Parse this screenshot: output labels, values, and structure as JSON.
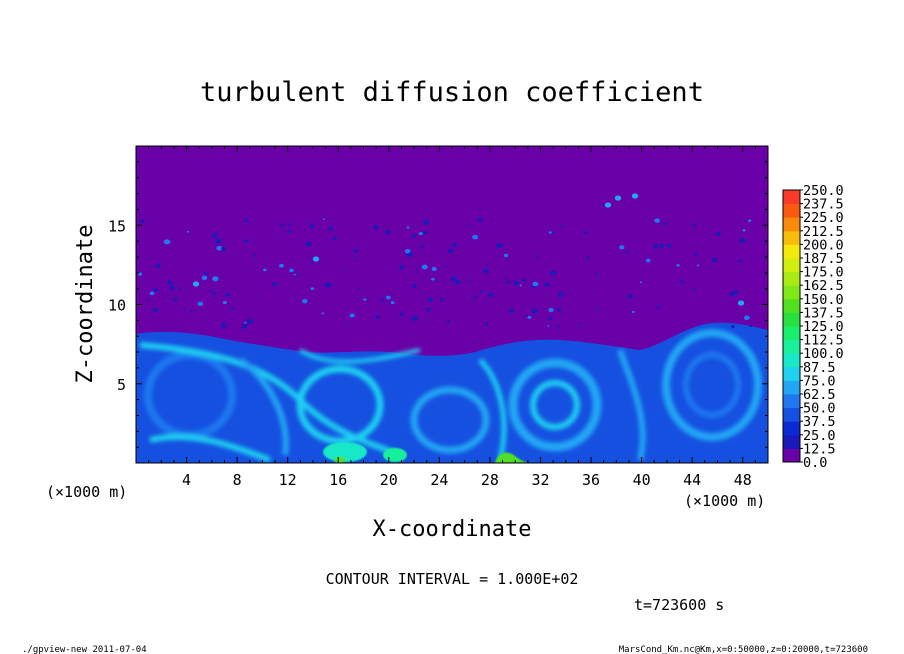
{
  "chart_data": {
    "type": "heatmap",
    "title": "turbulent diffusion coefficient",
    "xlabel": "X-coordinate",
    "ylabel": "Z-coordinate",
    "x_unit_left": "(×1000 m)",
    "x_unit_right": "(×1000 m)",
    "xlim": [
      0,
      50
    ],
    "ylim": [
      0,
      20
    ],
    "x_ticks": [
      4,
      8,
      12,
      16,
      20,
      24,
      28,
      32,
      36,
      40,
      44,
      48
    ],
    "y_ticks": [
      5,
      10,
      15
    ],
    "x_tick_labels": [
      "4",
      "8",
      "12",
      "16",
      "20",
      "24",
      "28",
      "32",
      "36",
      "40",
      "44",
      "48"
    ],
    "y_tick_labels": [
      "5",
      "10",
      "15"
    ],
    "colorbar": {
      "levels": [
        0.0,
        12.5,
        25.0,
        37.5,
        50.0,
        62.5,
        75.0,
        87.5,
        100.0,
        112.5,
        125.0,
        137.5,
        150.0,
        162.5,
        175.0,
        187.5,
        200.0,
        212.5,
        225.0,
        237.5,
        250.0
      ],
      "labels": [
        "0.0",
        "12.5",
        "25.0",
        "37.5",
        "50.0",
        "62.5",
        "75.0",
        "87.5",
        "100.0",
        "112.5",
        "125.0",
        "137.5",
        "150.0",
        "162.5",
        "175.0",
        "187.5",
        "200.0",
        "212.5",
        "225.0",
        "237.5",
        "250.0"
      ],
      "colors": [
        "#6a00a8",
        "#1a1ab8",
        "#0b2ad2",
        "#1650e0",
        "#1f78f0",
        "#22a6f4",
        "#1fd0f0",
        "#19e8c8",
        "#19f09c",
        "#1aee6e",
        "#28e040",
        "#50e020",
        "#80e818",
        "#a8ec14",
        "#d0ee10",
        "#f4e80c",
        "#f8bc0c",
        "#f88a0c",
        "#f85a10",
        "#f83a28",
        "#f87878"
      ]
    },
    "background_color": "#6a00a8",
    "turbulent_layer_top_km": 8,
    "notes": {
      "contour_interval": "CONTOUR INTERVAL = 1.000E+02",
      "time": "t=723600 s",
      "footer_left": "./gpview-new  2011-07-04",
      "footer_right": "MarsCond_Km.nc@Km,x=0:50000,z=0:20000,t=723600"
    }
  }
}
